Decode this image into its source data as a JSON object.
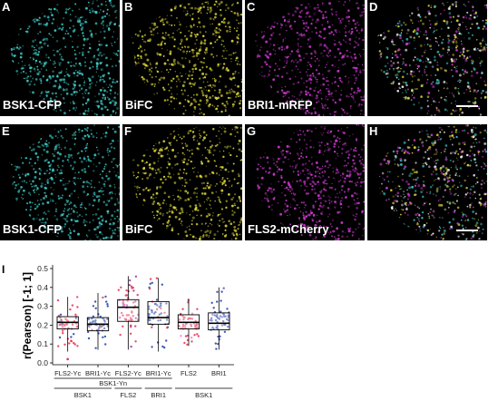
{
  "panels": [
    {
      "letter": "A",
      "caption": "BSK1-CFP",
      "color": "#3fd6d0",
      "scalebar": false
    },
    {
      "letter": "B",
      "caption": "BiFC",
      "color": "#e8e23a",
      "scalebar": false
    },
    {
      "letter": "C",
      "caption": "BRI1-mRFP",
      "color": "#d43bd6",
      "scalebar": false
    },
    {
      "letter": "D",
      "caption": "",
      "color": "merge",
      "scalebar": true
    },
    {
      "letter": "E",
      "caption": "BSK1-CFP",
      "color": "#3fd6d0",
      "scalebar": false
    },
    {
      "letter": "F",
      "caption": "BiFC",
      "color": "#e8e23a",
      "scalebar": false
    },
    {
      "letter": "G",
      "caption": "FLS2-mCherry",
      "color": "#d43bd6",
      "scalebar": false
    },
    {
      "letter": "H",
      "caption": "",
      "color": "merge",
      "scalebar": true
    }
  ],
  "plot_label": "I",
  "chart_data": {
    "type": "box",
    "ylabel": "r(Pearson) [-1; 1]",
    "ylim": [
      0.0,
      0.5
    ],
    "yticks": [
      "0.0",
      "0.1",
      "0.2",
      "0.3",
      "0.4",
      "0.5"
    ],
    "categories": [
      "FLS2-Yc",
      "BRI1-Yc",
      "FLS2-Yc",
      "BRI1-Yc",
      "FLS2",
      "BRI1"
    ],
    "group_row1": [
      {
        "label": "BSK1-Yn",
        "span": [
          0,
          3
        ]
      }
    ],
    "group_row2": [
      {
        "label": "BSK1",
        "span": [
          0,
          1
        ]
      },
      {
        "label": "FLS2",
        "span": [
          2,
          2
        ]
      },
      {
        "label": "BRI1",
        "span": [
          3,
          3
        ]
      },
      {
        "label": "BSK1",
        "span": [
          4,
          5
        ]
      }
    ],
    "boxes": [
      {
        "q1": 0.18,
        "median": 0.215,
        "q3": 0.245,
        "whisker_low": 0.06,
        "whisker_high": 0.35,
        "outliers": [
          0.02
        ]
      },
      {
        "q1": 0.17,
        "median": 0.205,
        "q3": 0.24,
        "whisker_low": 0.07,
        "whisker_high": 0.37,
        "outliers": []
      },
      {
        "q1": 0.22,
        "median": 0.295,
        "q3": 0.335,
        "whisker_low": 0.07,
        "whisker_high": 0.46,
        "outliers": []
      },
      {
        "q1": 0.205,
        "median": 0.24,
        "q3": 0.325,
        "whisker_low": 0.06,
        "whisker_high": 0.45,
        "outliers": []
      },
      {
        "q1": 0.18,
        "median": 0.215,
        "q3": 0.255,
        "whisker_low": 0.09,
        "whisker_high": 0.34,
        "outliers": []
      },
      {
        "q1": 0.175,
        "median": 0.21,
        "q3": 0.265,
        "whisker_low": 0.07,
        "whisker_high": 0.4,
        "outliers": []
      }
    ],
    "point_colors": [
      "#e8304f",
      "#1f3fa8",
      "#e8304f",
      "#1f3fa8",
      "#e8304f",
      "#1f3fa8"
    ],
    "secondary_point_colors": [
      "#1f3fa8",
      "#e8304f",
      "#9a2aa8",
      "#e8304f",
      "#ff7fbf",
      "#6a4bd0"
    ]
  }
}
